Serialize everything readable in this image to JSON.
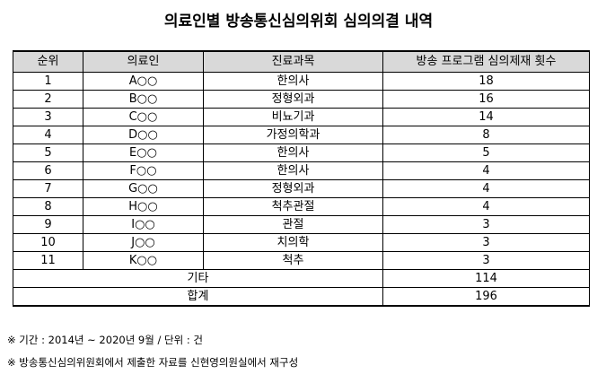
{
  "title": "의료인별 방송통신심의위회 심의의결 내역",
  "headers": [
    "순위",
    "의료인",
    "진료과목",
    "방송 프로그램 심의제재 횟수"
  ],
  "rows": [
    {
      "rank": "1",
      "name": "A○○",
      "dept": "한의사",
      "count": "18"
    },
    {
      "rank": "2",
      "name": "B○○",
      "dept": "정형외과",
      "count": "16"
    },
    {
      "rank": "3",
      "name": "C○○",
      "dept": "비뇨기과",
      "count": "14"
    },
    {
      "rank": "4",
      "name": "D○○",
      "dept": "가정의학과",
      "count": "8"
    },
    {
      "rank": "5",
      "name": "E○○",
      "dept": "한의사",
      "count": "5"
    },
    {
      "rank": "6",
      "name": "F○○",
      "dept": "한의사",
      "count": "4"
    },
    {
      "rank": "7",
      "name": "G○○",
      "dept": "정형외과",
      "count": "4"
    },
    {
      "rank": "8",
      "name": "H○○",
      "dept": "척추관절",
      "count": "4"
    },
    {
      "rank": "9",
      "name": "I○○",
      "dept": "관절",
      "count": "3"
    },
    {
      "rank": "10",
      "name": "J○○",
      "dept": "치의학",
      "count": "3"
    },
    {
      "rank": "11",
      "name": "K○○",
      "dept": "척추",
      "count": "3"
    }
  ],
  "other": {
    "label": "기타",
    "count": "114"
  },
  "total": {
    "label": "합계",
    "count": "196"
  },
  "notes": [
    "※ 기간 : 2014년 ~ 2020년 9월 / 단위 : 건",
    "※ 방송통신심의위원회에서 제출한 자료를 신현영의원실에서 재구성"
  ]
}
